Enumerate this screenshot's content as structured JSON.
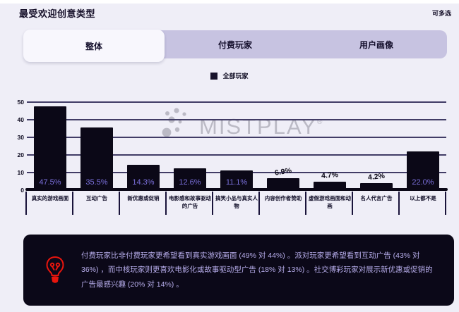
{
  "header": {
    "title": "最受欢迎创意类型",
    "note": "可多选"
  },
  "tabs": [
    {
      "label": "整体",
      "active": true
    },
    {
      "label": "付费玩家",
      "active": false
    },
    {
      "label": "用户画像",
      "active": false
    }
  ],
  "legend": {
    "label": "全部玩家",
    "swatch_color": "#17122b"
  },
  "watermark": {
    "text": "MISTPLAY",
    "reg": "®"
  },
  "chart_data": {
    "type": "bar",
    "title": "最受欢迎创意类型",
    "series_name": "全部玩家",
    "categories": [
      "真实的游戏画面",
      "互动广告",
      "新优惠或促销",
      "电影感和故事驱动的广告",
      "搞笑小品与真实人物",
      "内容创作者赞助",
      "虚假游戏画面和动画",
      "名人代言广告",
      "以上都不是"
    ],
    "values": [
      47.5,
      35.5,
      14.3,
      12.6,
      11.1,
      6.9,
      4.7,
      4.2,
      22.0
    ],
    "value_labels": [
      "47.5%",
      "35.5%",
      "14.3%",
      "12.6%",
      "11.1%",
      "6.9%",
      "4.7%",
      "4.2%",
      "22.0%"
    ],
    "label_positions": [
      "in",
      "in",
      "in",
      "in",
      "in",
      "out",
      "out",
      "out",
      "in"
    ],
    "xlabel": "",
    "ylabel": "",
    "ylim": [
      0,
      50
    ],
    "yticks": [
      0,
      10,
      20,
      30,
      40,
      50
    ],
    "grid": true,
    "legend_position": "top-center",
    "bar_color": "#0b0817",
    "label_inside_color": "#7b70dc",
    "label_outside_color": "#0b0817"
  },
  "insight": {
    "icon": "lightbulb-icon",
    "text": "付费玩家比非付费玩家更希望看到真实游戏画面 (49% 对 44%) 。派对玩家更希望看到互动广告 (43% 对 36%) ，而中核玩家则更喜欢电影化或故事驱动型广告 (18% 对 13%) 。社交博彩玩家对展示新优惠或促销的广告最感兴趣 (20% 对 14%) 。"
  }
}
